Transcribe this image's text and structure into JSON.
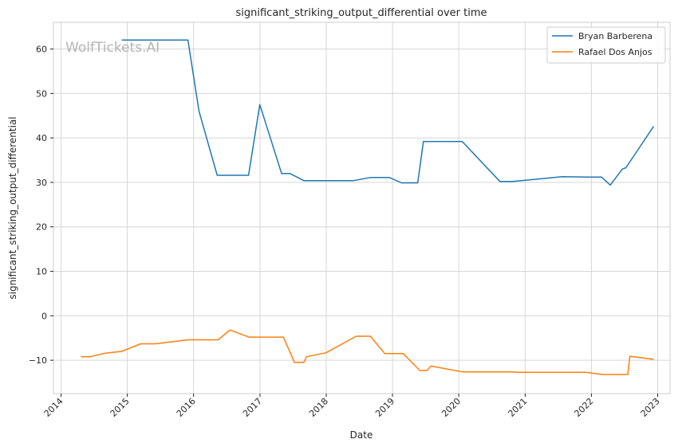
{
  "chart_data": {
    "type": "line",
    "title": "significant_striking_output_differential over time",
    "xlabel": "Date",
    "ylabel": "significant_striking_output_differential",
    "watermark": "WolfTickets.AI",
    "xlim": [
      "2013-11-20",
      "2023-03-10"
    ],
    "ylim": [
      -17.5,
      66
    ],
    "grid": true,
    "legend_position": "top-right",
    "x_ticks": [
      "2014",
      "2015",
      "2016",
      "2017",
      "2018",
      "2019",
      "2020",
      "2021",
      "2022",
      "2023"
    ],
    "y_ticks": [
      -10,
      0,
      10,
      20,
      30,
      40,
      50,
      60
    ],
    "series": [
      {
        "name": "Bryan Barberena",
        "color": "#1f77b4",
        "points": [
          [
            "2014-12-01",
            62.0
          ],
          [
            "2015-12-01",
            62.0
          ],
          [
            "2016-01-31",
            46.0
          ],
          [
            "2016-05-10",
            31.6
          ],
          [
            "2016-10-30",
            31.6
          ],
          [
            "2016-12-31",
            47.5
          ],
          [
            "2017-04-30",
            32.0
          ],
          [
            "2017-06-15",
            32.0
          ],
          [
            "2017-08-30",
            30.4
          ],
          [
            "2018-06-01",
            30.4
          ],
          [
            "2018-08-30",
            31.1
          ],
          [
            "2018-12-15",
            31.1
          ],
          [
            "2019-02-20",
            29.9
          ],
          [
            "2019-05-20",
            29.9
          ],
          [
            "2019-06-20",
            39.2
          ],
          [
            "2020-01-20",
            39.2
          ],
          [
            "2020-08-15",
            30.2
          ],
          [
            "2020-10-25",
            30.2
          ],
          [
            "2021-07-25",
            31.3
          ],
          [
            "2021-12-20",
            31.2
          ],
          [
            "2022-02-25",
            31.2
          ],
          [
            "2022-04-15",
            29.4
          ],
          [
            "2022-06-20",
            33.0
          ],
          [
            "2022-07-10",
            33.3
          ],
          [
            "2022-12-10",
            42.6
          ]
        ]
      },
      {
        "name": "Rafael Dos Anjos",
        "color": "#ff7f0e",
        "points": [
          [
            "2014-04-20",
            -9.2
          ],
          [
            "2014-06-10",
            -9.2
          ],
          [
            "2014-09-01",
            -8.4
          ],
          [
            "2014-12-01",
            -8.0
          ],
          [
            "2015-03-15",
            -6.3
          ],
          [
            "2015-06-01",
            -6.3
          ],
          [
            "2015-12-01",
            -5.4
          ],
          [
            "2016-05-15",
            -5.4
          ],
          [
            "2016-07-20",
            -3.2
          ],
          [
            "2016-11-01",
            -4.8
          ],
          [
            "2017-05-10",
            -4.8
          ],
          [
            "2017-07-10",
            -10.5
          ],
          [
            "2017-08-30",
            -10.5
          ],
          [
            "2017-09-15",
            -9.2
          ],
          [
            "2017-12-31",
            -8.3
          ],
          [
            "2018-06-15",
            -4.6
          ],
          [
            "2018-09-01",
            -4.6
          ],
          [
            "2018-11-20",
            -8.5
          ],
          [
            "2019-03-01",
            -8.5
          ],
          [
            "2019-06-01",
            -12.3
          ],
          [
            "2019-07-10",
            -12.3
          ],
          [
            "2019-08-01",
            -11.3
          ],
          [
            "2020-01-20",
            -12.6
          ],
          [
            "2020-10-20",
            -12.6
          ],
          [
            "2020-12-01",
            -12.7
          ],
          [
            "2021-12-01",
            -12.7
          ],
          [
            "2022-03-01",
            -13.2
          ],
          [
            "2022-07-20",
            -13.2
          ],
          [
            "2022-08-01",
            -9.1
          ],
          [
            "2022-12-10",
            -9.8
          ]
        ]
      }
    ]
  }
}
